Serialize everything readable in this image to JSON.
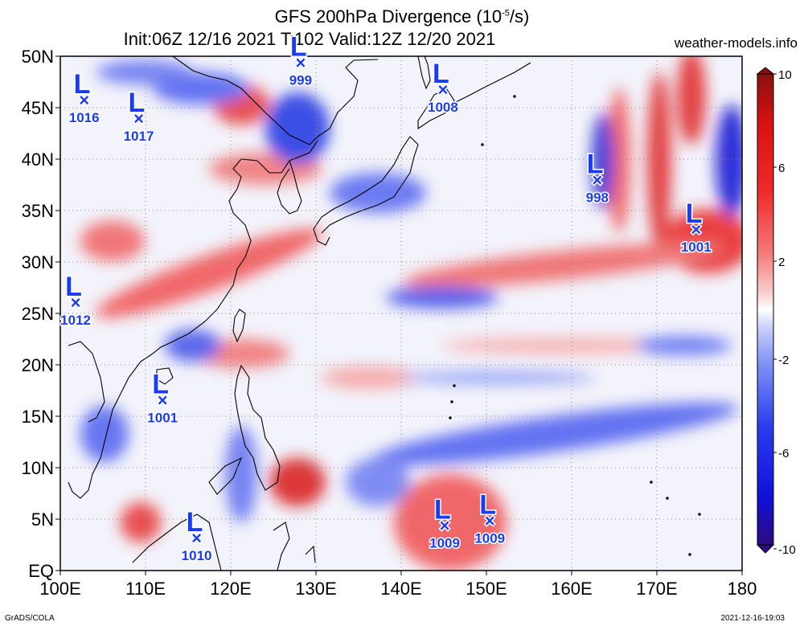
{
  "header": {
    "title_prefix": "GFS 200hPa Divergence (10",
    "title_exp": "-5",
    "title_suffix": "/s)",
    "subtitle": "Init:06Z 12/16 2021  T:102  Valid:12Z 12/20 2021",
    "site": "weather-models.info"
  },
  "footer": {
    "left": "GrADS/COLA",
    "right": "2021-12-16-19:03"
  },
  "map": {
    "lon_range": [
      100,
      180
    ],
    "lat_range": [
      0,
      50
    ],
    "lon_ticks": [
      "100E",
      "110E",
      "120E",
      "130E",
      "140E",
      "150E",
      "160E",
      "170E",
      "180"
    ],
    "lat_ticks": [
      "EQ",
      "5N",
      "10N",
      "15N",
      "20N",
      "25N",
      "30N",
      "35N",
      "40N",
      "45N",
      "50N"
    ],
    "grid": true
  },
  "colorbar": {
    "labels": [
      "10",
      "6",
      "2",
      "-2",
      "-6",
      "-10"
    ],
    "colors": [
      "#2e0a80",
      "#1010d8",
      "#2a3cf0",
      "#7a8ef4",
      "#c8d0fa",
      "#ffffff",
      "#fac8c8",
      "#f47a7a",
      "#f02a2a",
      "#d81010",
      "#8a1010"
    ]
  },
  "lows": [
    {
      "label": "L",
      "pressure": "1016",
      "lon": 102.8,
      "lat": 45.8
    },
    {
      "label": "L",
      "pressure": "1017",
      "lon": 109.2,
      "lat": 44.0
    },
    {
      "label": "L",
      "pressure": "999",
      "lon": 128.2,
      "lat": 49.4
    },
    {
      "label": "L",
      "pressure": "1008",
      "lon": 144.9,
      "lat": 46.8
    },
    {
      "label": "L",
      "pressure": "998",
      "lon": 163.0,
      "lat": 38.0
    },
    {
      "label": "L",
      "pressure": "1001",
      "lon": 174.6,
      "lat": 33.2
    },
    {
      "label": "L",
      "pressure": "1012",
      "lon": 101.8,
      "lat": 26.1
    },
    {
      "label": "L",
      "pressure": "1001",
      "lon": 112.0,
      "lat": 16.6
    },
    {
      "label": "L",
      "pressure": "1010",
      "lon": 116.0,
      "lat": 3.2
    },
    {
      "label": "L",
      "pressure": "1009",
      "lon": 145.1,
      "lat": 4.4
    },
    {
      "label": "L",
      "pressure": "1009",
      "lon": 150.4,
      "lat": 4.9
    }
  ]
}
